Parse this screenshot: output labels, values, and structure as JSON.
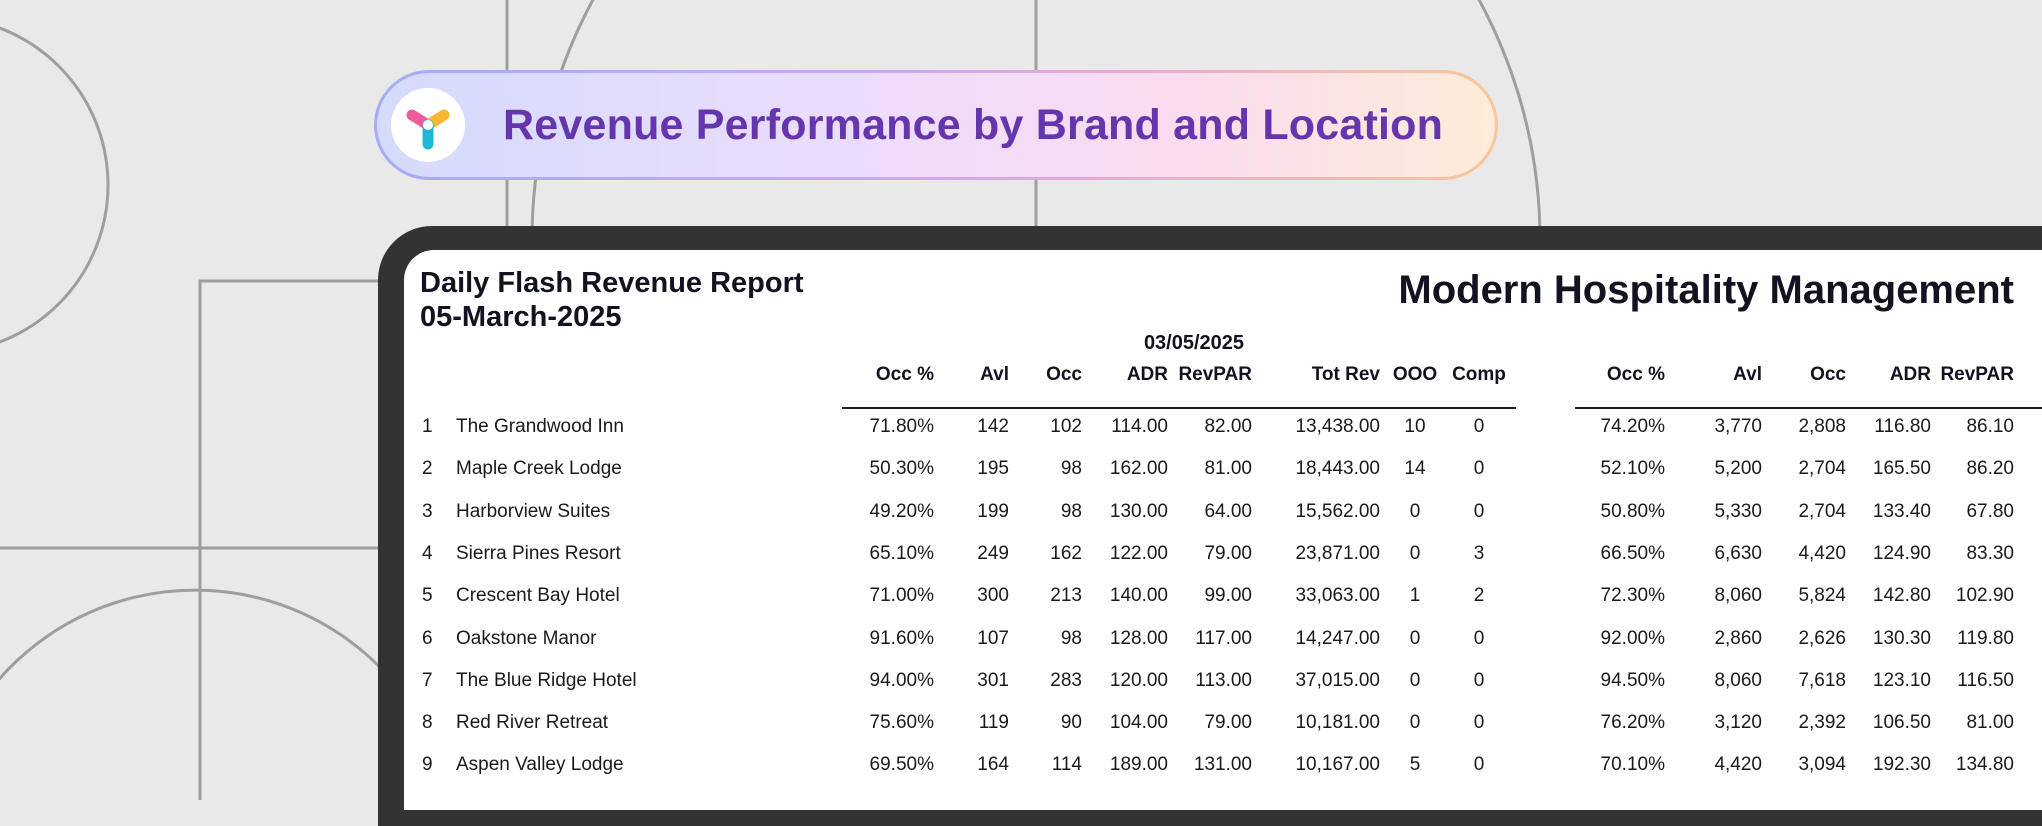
{
  "banner": {
    "title": "Revenue Performance by Brand and Location",
    "logo_icon": "tri-spoke-logo-icon"
  },
  "report": {
    "title_line1": "Daily Flash Revenue Report",
    "title_line2": "05-March-2025",
    "company": "Modern Hospitality Management",
    "date_heading": "03/05/2025"
  },
  "columns_day": [
    "Occ %",
    "Avl",
    "Occ",
    "ADR",
    "RevPAR",
    "Tot Rev",
    "OOO",
    "Comp"
  ],
  "columns_period": [
    "Occ %",
    "Avl",
    "Occ",
    "ADR",
    "RevPAR"
  ],
  "rows": [
    {
      "num": "1",
      "name": "The Grandwood Inn",
      "day": [
        "71.80%",
        "142",
        "102",
        "114.00",
        "82.00",
        "13,438.00",
        "10",
        "0"
      ],
      "period": [
        "74.20%",
        "3,770",
        "2,808",
        "116.80",
        "86.10"
      ]
    },
    {
      "num": "2",
      "name": "Maple Creek Lodge",
      "day": [
        "50.30%",
        "195",
        "98",
        "162.00",
        "81.00",
        "18,443.00",
        "14",
        "0"
      ],
      "period": [
        "52.10%",
        "5,200",
        "2,704",
        "165.50",
        "86.20"
      ]
    },
    {
      "num": "3",
      "name": "Harborview Suites",
      "day": [
        "49.20%",
        "199",
        "98",
        "130.00",
        "64.00",
        "15,562.00",
        "0",
        "0"
      ],
      "period": [
        "50.80%",
        "5,330",
        "2,704",
        "133.40",
        "67.80"
      ]
    },
    {
      "num": "4",
      "name": "Sierra Pines Resort",
      "day": [
        "65.10%",
        "249",
        "162",
        "122.00",
        "79.00",
        "23,871.00",
        "0",
        "3"
      ],
      "period": [
        "66.50%",
        "6,630",
        "4,420",
        "124.90",
        "83.30"
      ]
    },
    {
      "num": "5",
      "name": "Crescent Bay Hotel",
      "day": [
        "71.00%",
        "300",
        "213",
        "140.00",
        "99.00",
        "33,063.00",
        "1",
        "2"
      ],
      "period": [
        "72.30%",
        "8,060",
        "5,824",
        "142.80",
        "102.90"
      ]
    },
    {
      "num": "6",
      "name": "Oakstone Manor",
      "day": [
        "91.60%",
        "107",
        "98",
        "128.00",
        "117.00",
        "14,247.00",
        "0",
        "0"
      ],
      "period": [
        "92.00%",
        "2,860",
        "2,626",
        "130.30",
        "119.80"
      ]
    },
    {
      "num": "7",
      "name": "The Blue Ridge Hotel",
      "day": [
        "94.00%",
        "301",
        "283",
        "120.00",
        "113.00",
        "37,015.00",
        "0",
        "0"
      ],
      "period": [
        "94.50%",
        "8,060",
        "7,618",
        "123.10",
        "116.50"
      ]
    },
    {
      "num": "8",
      "name": "Red River Retreat",
      "day": [
        "75.60%",
        "119",
        "90",
        "104.00",
        "79.00",
        "10,181.00",
        "0",
        "0"
      ],
      "period": [
        "76.20%",
        "3,120",
        "2,392",
        "106.50",
        "81.00"
      ]
    },
    {
      "num": "9",
      "name": "Aspen Valley Lodge",
      "day": [
        "69.50%",
        "164",
        "114",
        "189.00",
        "131.00",
        "10,167.00",
        "5",
        "0"
      ],
      "period": [
        "70.10%",
        "4,420",
        "3,094",
        "192.30",
        "134.80"
      ]
    }
  ],
  "colors": {
    "accent": "#6535ad",
    "frame": "#333333",
    "background": "#e9e9e9"
  }
}
